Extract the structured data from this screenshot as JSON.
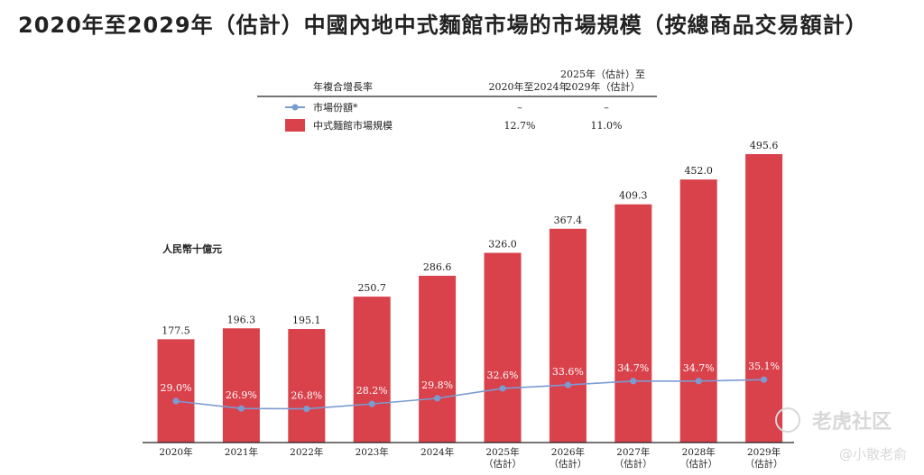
{
  "title": "2020年至2029年（估計）中國內地中式麵館市場的市場規模（按總商品交易額計）",
  "chart_data": {
    "type": "bar",
    "title": "2020年至2029年（估計）中國內地中式麵館市場的市場規模（按總商品交易額計）",
    "unit_label": "人民幣十億元",
    "categories": [
      [
        "2020年"
      ],
      [
        "2021年"
      ],
      [
        "2022年"
      ],
      [
        "2023年"
      ],
      [
        "2024年"
      ],
      [
        "2025年",
        "（估計）"
      ],
      [
        "2026年",
        "（估計）"
      ],
      [
        "2027年",
        "（估計）"
      ],
      [
        "2028年",
        "（估計）"
      ],
      [
        "2029年",
        "（估計）"
      ]
    ],
    "series": [
      {
        "name": "中式麵館市場規模",
        "type": "bar",
        "color": "#d9414b",
        "values": [
          177.5,
          196.3,
          195.1,
          250.7,
          286.6,
          326.0,
          367.4,
          409.3,
          452.0,
          495.6
        ],
        "labels": [
          "177.5",
          "196.3",
          "195.1",
          "250.7",
          "286.6",
          "326.0",
          "367.4",
          "409.3",
          "452.0",
          "495.6"
        ]
      },
      {
        "name": "市場份額*",
        "type": "line",
        "color": "#7b9bd1",
        "values": [
          29.0,
          26.9,
          26.8,
          28.2,
          29.8,
          32.6,
          33.6,
          34.7,
          34.7,
          35.1
        ],
        "labels": [
          "29.0%",
          "26.9%",
          "26.8%",
          "28.2%",
          "29.8%",
          "32.6%",
          "33.6%",
          "34.7%",
          "34.7%",
          "35.1%"
        ]
      }
    ],
    "ylim": [
      0,
      520
    ],
    "share_ylim": [
      0,
      100
    ],
    "legend": {
      "header": "年複合增長率",
      "col1": "2020年至2024年",
      "col2_line1": "2025年（估計）至",
      "col2_line2": "2029年（估計）",
      "rows": [
        {
          "name": "市場份額*",
          "col1": "–",
          "col2": "–"
        },
        {
          "name": "中式麵館市場規模",
          "col1": "12.7%",
          "col2": "11.0%"
        }
      ]
    }
  },
  "watermark": {
    "brand": "老虎社区",
    "author": "@小散老俞"
  }
}
